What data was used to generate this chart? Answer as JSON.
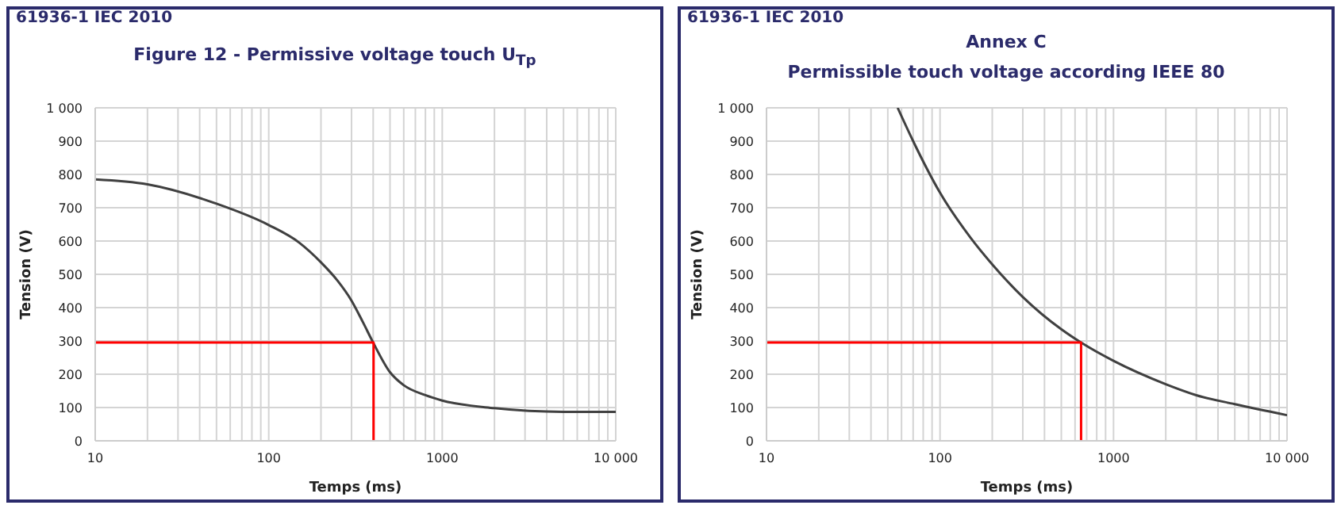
{
  "chart_data": [
    {
      "type": "line",
      "annotations": [
        "61936-1 IEC 2010"
      ],
      "title": "Figure 12 - Permissive voltage touch U$_{Tp}$",
      "xlabel": "Temps (ms)",
      "ylabel": "Tension (V)",
      "log": "x",
      "grid": true,
      "xlim": [
        10,
        10000
      ],
      "xticks": [
        10,
        {
          "value": 20,
          "label": null
        },
        {
          "value": 30,
          "label": null
        },
        {
          "value": 40,
          "label": null
        },
        {
          "value": 50,
          "label": null
        },
        {
          "value": 60,
          "label": null
        },
        {
          "value": 70,
          "label": null
        },
        {
          "value": 80,
          "label": null
        },
        {
          "value": 90,
          "label": null
        },
        100,
        {
          "value": 200,
          "label": null
        },
        {
          "value": 300,
          "label": null
        },
        {
          "value": 400,
          "label": null
        },
        {
          "value": 500,
          "label": null
        },
        {
          "value": 600,
          "label": null
        },
        {
          "value": 700,
          "label": null
        },
        {
          "value": 800,
          "label": null
        },
        {
          "value": 900,
          "label": null
        },
        1000,
        {
          "value": 2000,
          "label": null
        },
        {
          "value": 3000,
          "label": null
        },
        {
          "value": 4000,
          "label": null
        },
        {
          "value": 5000,
          "label": null
        },
        {
          "value": 6000,
          "label": null
        },
        {
          "value": 7000,
          "label": null
        },
        {
          "value": 8000,
          "label": null
        },
        {
          "value": 9000,
          "label": null
        },
        {
          "value": 10000,
          "label": "10 000"
        }
      ],
      "ylim": [
        0,
        1000
      ],
      "yticks": [
        0,
        100,
        200,
        300,
        400,
        500,
        600,
        700,
        800,
        900,
        {
          "value": 1000,
          "label": "1 000"
        }
      ],
      "series": [
        {
          "color": "#404040",
          "x": [
            10,
            20,
            50,
            100,
            150,
            200,
            250,
            300,
            350,
            400,
            500,
            600,
            800,
            1000,
            2000,
            5000,
            10000
          ],
          "values": [
            785,
            770,
            712,
            648,
            595,
            536,
            480,
            421,
            355,
            295,
            206,
            167,
            137,
            121,
            98,
            87,
            87
          ]
        },
        {
          "color": "#ff0000",
          "x": [
            10,
            402,
            402
          ],
          "values": [
            295,
            295,
            0
          ]
        }
      ]
    },
    {
      "type": "line",
      "annotations": [
        "61936-1 IEC 2010"
      ],
      "title": "Annex C",
      "subtitle": "Permissible touch voltage according IEEE 80",
      "xlabel": "Temps (ms)",
      "ylabel": "Tension (V)",
      "log": "x",
      "grid": true,
      "xlim": [
        10,
        10000
      ],
      "xticks": [
        10,
        {
          "value": 20,
          "label": null
        },
        {
          "value": 30,
          "label": null
        },
        {
          "value": 40,
          "label": null
        },
        {
          "value": 50,
          "label": null
        },
        {
          "value": 60,
          "label": null
        },
        {
          "value": 70,
          "label": null
        },
        {
          "value": 80,
          "label": null
        },
        {
          "value": 90,
          "label": null
        },
        100,
        {
          "value": 200,
          "label": null
        },
        {
          "value": 300,
          "label": null
        },
        {
          "value": 400,
          "label": null
        },
        {
          "value": 500,
          "label": null
        },
        {
          "value": 600,
          "label": null
        },
        {
          "value": 700,
          "label": null
        },
        {
          "value": 800,
          "label": null
        },
        {
          "value": 900,
          "label": null
        },
        1000,
        {
          "value": 2000,
          "label": null
        },
        {
          "value": 3000,
          "label": null
        },
        {
          "value": 4000,
          "label": null
        },
        {
          "value": 5000,
          "label": null
        },
        {
          "value": 6000,
          "label": null
        },
        {
          "value": 7000,
          "label": null
        },
        {
          "value": 8000,
          "label": null
        },
        {
          "value": 9000,
          "label": null
        },
        {
          "value": 10000,
          "label": "10 000"
        }
      ],
      "ylim": [
        0,
        1000
      ],
      "yticks": [
        0,
        100,
        200,
        300,
        400,
        500,
        600,
        700,
        800,
        900,
        {
          "value": 1000,
          "label": "1 000"
        }
      ],
      "series": [
        {
          "color": "#404040",
          "x": [
            57,
            70,
            100,
            150,
            200,
            300,
            500,
            650,
            1000,
            2000,
            3000,
            5000,
            10000
          ],
          "values": [
            1000,
            900,
            745,
            610,
            530,
            432,
            335,
            295,
            240,
            170,
            137,
            110,
            77
          ]
        },
        {
          "color": "#ff0000",
          "x": [
            10,
            650,
            650
          ],
          "values": [
            295,
            295,
            0
          ]
        }
      ]
    }
  ]
}
